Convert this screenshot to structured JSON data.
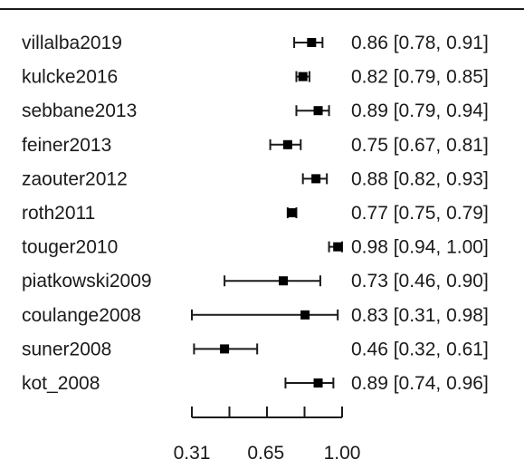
{
  "chart_data": {
    "type": "forest",
    "title": "",
    "xlabel": "",
    "ylabel": "",
    "x_ticks": [
      0.31,
      0.65,
      1.0
    ],
    "x_tick_labels": [
      "0.31",
      "0.65",
      "1.00"
    ],
    "xlim": [
      0.31,
      1.0
    ],
    "grid": false,
    "legend": "none",
    "studies": [
      {
        "label": "villalba2019",
        "estimate": 0.86,
        "lower": 0.78,
        "upper": 0.91,
        "text": "0.86 [0.78, 0.91]"
      },
      {
        "label": "kulcke2016",
        "estimate": 0.82,
        "lower": 0.79,
        "upper": 0.85,
        "text": "0.82 [0.79, 0.85]"
      },
      {
        "label": "sebbane2013",
        "estimate": 0.89,
        "lower": 0.79,
        "upper": 0.94,
        "text": "0.89 [0.79, 0.94]"
      },
      {
        "label": "feiner2013",
        "estimate": 0.75,
        "lower": 0.67,
        "upper": 0.81,
        "text": "0.75 [0.67, 0.81]"
      },
      {
        "label": "zaouter2012",
        "estimate": 0.88,
        "lower": 0.82,
        "upper": 0.93,
        "text": "0.88 [0.82, 0.93]"
      },
      {
        "label": "roth2011",
        "estimate": 0.77,
        "lower": 0.75,
        "upper": 0.79,
        "text": "0.77 [0.75, 0.79]"
      },
      {
        "label": "touger2010",
        "estimate": 0.98,
        "lower": 0.94,
        "upper": 1.0,
        "text": "0.98 [0.94, 1.00]"
      },
      {
        "label": "piatkowski2009",
        "estimate": 0.73,
        "lower": 0.46,
        "upper": 0.9,
        "text": "0.73 [0.46, 0.90]"
      },
      {
        "label": "coulange2008",
        "estimate": 0.83,
        "lower": 0.31,
        "upper": 0.98,
        "text": "0.83 [0.31, 0.98]"
      },
      {
        "label": "suner2008",
        "estimate": 0.46,
        "lower": 0.32,
        "upper": 0.61,
        "text": "0.46 [0.32, 0.61]"
      },
      {
        "label": "kot_2008",
        "estimate": 0.89,
        "lower": 0.74,
        "upper": 0.96,
        "text": "0.89 [0.74, 0.96]"
      }
    ]
  },
  "colors": {
    "ink": "#1a1a1a",
    "marker": "#000000",
    "background": "#ffffff"
  }
}
